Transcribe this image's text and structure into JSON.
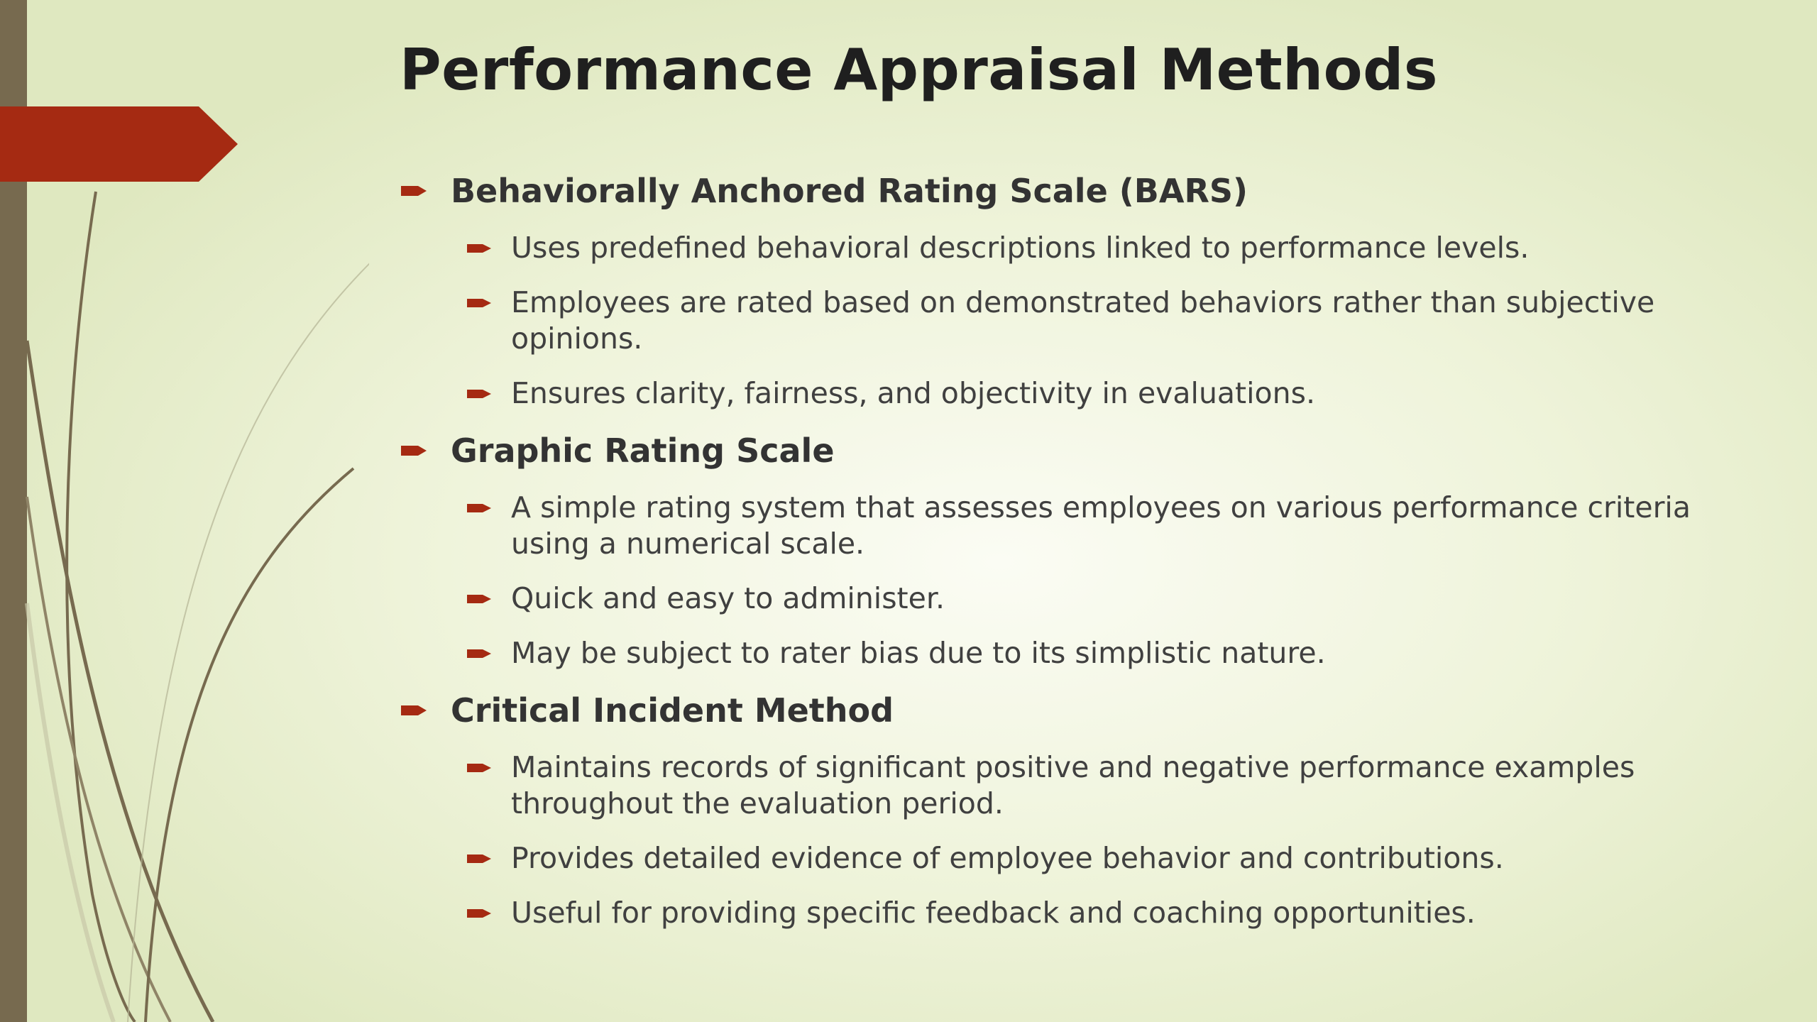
{
  "slide": {
    "title": "Performance Appraisal Methods",
    "accent_color": "#a52a12",
    "sidebar_color": "#776a4f",
    "bullet_icon": "arrow-bullet-icon",
    "sections": [
      {
        "heading": "Behaviorally Anchored Rating Scale (BARS)",
        "points": [
          "Uses predefined behavioral descriptions linked to performance levels.",
          "Employees are rated based on demonstrated behaviors rather than subjective opinions.",
          "Ensures clarity, fairness, and objectivity in evaluations."
        ]
      },
      {
        "heading": "Graphic Rating Scale",
        "points": [
          "A simple rating system that assesses employees on various performance criteria using a numerical scale.",
          "Quick and easy to administer.",
          "May be subject to rater bias due to its simplistic nature."
        ]
      },
      {
        "heading": "Critical Incident Method",
        "points": [
          "Maintains records of significant positive and negative performance examples throughout the evaluation period.",
          "Provides detailed evidence of employee behavior and contributions.",
          "Useful for providing specific feedback and coaching opportunities."
        ]
      }
    ]
  }
}
